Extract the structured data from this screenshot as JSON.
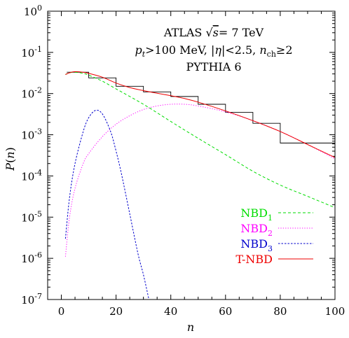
{
  "chart_data": {
    "type": "line",
    "title_lines": {
      "line1_prefix": "ATLAS ",
      "line1_sqrt": "√",
      "line1_s": "s",
      "line1_suffix": "= 7 TeV",
      "line2_p": "p",
      "line2_t": "t",
      "line2_mid": ">100 MeV, |",
      "line2_eta": "η",
      "line2_mid2": "|<2.5, ",
      "line2_n": "n",
      "line2_ch": "ch",
      "line2_end": "≥2",
      "line3": "PYTHIA 6"
    },
    "xlabel": "n",
    "ylabel_p": "P",
    "ylabel_paren_open": "(",
    "ylabel_n": "n",
    "ylabel_paren_close": ")",
    "xlim": [
      -5,
      100
    ],
    "ylim": [
      1e-07,
      1
    ],
    "yscale": "log",
    "x_ticks": [
      {
        "value": 0,
        "label": "0"
      },
      {
        "value": 20,
        "label": "20"
      },
      {
        "value": 40,
        "label": "40"
      },
      {
        "value": 60,
        "label": "60"
      },
      {
        "value": 80,
        "label": "80"
      },
      {
        "value": 100,
        "label": "100"
      }
    ],
    "y_ticks": [
      {
        "value": 1e-07,
        "base": "10",
        "exp": "-7"
      },
      {
        "value": 1e-06,
        "base": "10",
        "exp": "-6"
      },
      {
        "value": 1e-05,
        "base": "10",
        "exp": "-5"
      },
      {
        "value": 0.0001,
        "base": "10",
        "exp": "-4"
      },
      {
        "value": 0.001,
        "base": "10",
        "exp": "-3"
      },
      {
        "value": 0.01,
        "base": "10",
        "exp": "-2"
      },
      {
        "value": 0.1,
        "base": "10",
        "exp": "-1"
      },
      {
        "value": 1,
        "base": "10",
        "exp": "0"
      }
    ],
    "histogram": {
      "color": "#000000",
      "bins": [
        {
          "x0": 2,
          "x1": 10,
          "y": 0.033
        },
        {
          "x0": 10,
          "x1": 20,
          "y": 0.024
        },
        {
          "x0": 20,
          "x1": 30,
          "y": 0.015
        },
        {
          "x0": 30,
          "x1": 40,
          "y": 0.011
        },
        {
          "x0": 40,
          "x1": 50,
          "y": 0.0085
        },
        {
          "x0": 50,
          "x1": 60,
          "y": 0.0055
        },
        {
          "x0": 60,
          "x1": 70,
          "y": 0.0035
        },
        {
          "x0": 70,
          "x1": 80,
          "y": 0.0019
        },
        {
          "x0": 80,
          "x1": 90,
          "y": 0.00063
        },
        {
          "x0": 90,
          "x1": 100,
          "y": 0.00063
        }
      ]
    },
    "series": [
      {
        "name": "NBD",
        "sub": "1",
        "color": "#00dd00",
        "dash": "4,3",
        "x": [
          1.5,
          3,
          5,
          8,
          10,
          15,
          20,
          30,
          40,
          50,
          60,
          70,
          80,
          90,
          100
        ],
        "y": [
          0.029,
          0.032,
          0.033,
          0.031,
          0.028,
          0.02,
          0.013,
          0.0055,
          0.0021,
          0.00082,
          0.00033,
          0.00013,
          6e-05,
          3.2e-05,
          1.7e-05
        ]
      },
      {
        "name": "NBD",
        "sub": "2",
        "color": "#ff00ff",
        "dash": "1.2,2.2",
        "x": [
          1.5,
          3,
          5,
          8,
          10,
          15,
          20,
          25,
          30,
          35,
          40,
          45,
          50,
          60,
          70,
          80,
          90,
          100
        ],
        "y": [
          1.1e-06,
          1e-05,
          5e-05,
          0.0002,
          0.00035,
          0.0009,
          0.0018,
          0.0029,
          0.0041,
          0.005,
          0.0055,
          0.0055,
          0.005,
          0.0036,
          0.0022,
          0.0012,
          0.00058,
          0.00026
        ]
      },
      {
        "name": "NBD",
        "sub": "3",
        "color": "#0000cc",
        "dash": "2.5,2",
        "x": [
          1.5,
          3,
          5,
          8,
          10,
          12.5,
          15,
          18,
          20,
          22,
          25,
          28,
          30,
          32
        ],
        "y": [
          3e-06,
          3e-05,
          0.0002,
          0.0012,
          0.0026,
          0.0039,
          0.0032,
          0.0012,
          0.0004,
          0.00011,
          1.2e-05,
          1.3e-06,
          4e-07,
          1e-07
        ]
      },
      {
        "name": "T-NBD",
        "sub": "",
        "color": "#ee0000",
        "dash": "",
        "x": [
          1.5,
          3,
          5,
          8,
          10,
          15,
          20,
          25,
          30,
          35,
          40,
          45,
          50,
          60,
          70,
          80,
          90,
          100
        ],
        "y": [
          0.029,
          0.032,
          0.034,
          0.033,
          0.031,
          0.025,
          0.018,
          0.014,
          0.0118,
          0.0102,
          0.0089,
          0.0076,
          0.0062,
          0.0038,
          0.0022,
          0.0012,
          0.00058,
          0.00028
        ]
      }
    ],
    "legend_position": "bottom-right"
  }
}
